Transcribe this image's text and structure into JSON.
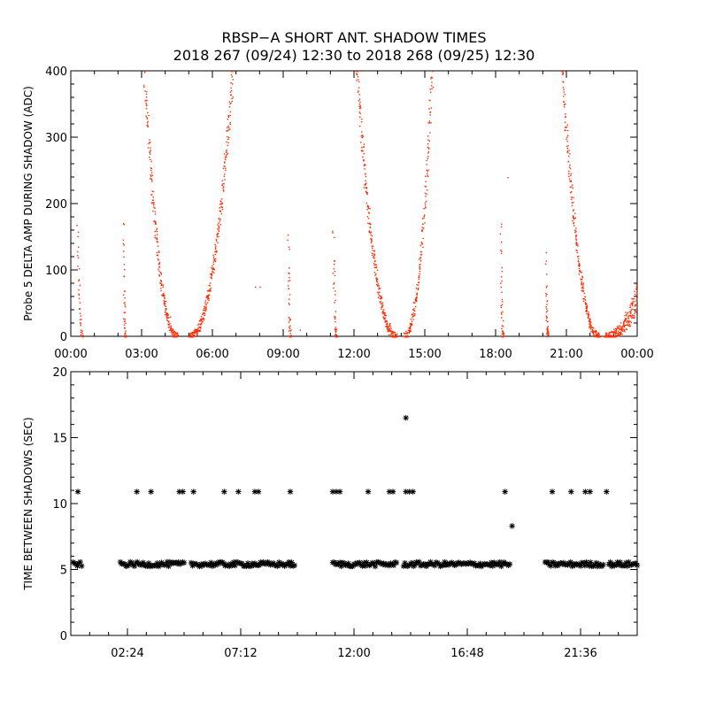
{
  "title": {
    "line1": "RBSP−A SHORT ANT. SHADOW TIMES",
    "line2": "2018 267 (09/24) 12:30 to 2018 268 (09/25) 12:30"
  },
  "colors": {
    "points": "#ff2a00",
    "axes": "#000000",
    "stars": "#000000"
  },
  "chart_data": [
    {
      "type": "scatter",
      "name": "top-panel",
      "ylabel": "Probe 5 DELTA AMP DURING SHADOW (ADC)",
      "xlabel": "",
      "x_unit": "hours",
      "xlim": [
        0,
        24
      ],
      "ylim": [
        0,
        400
      ],
      "x_ticks": [
        {
          "value": 0,
          "label": "00:00"
        },
        {
          "value": 3,
          "label": "03:00"
        },
        {
          "value": 6,
          "label": "06:00"
        },
        {
          "value": 9,
          "label": "09:00"
        },
        {
          "value": 12,
          "label": "12:00"
        },
        {
          "value": 15,
          "label": "15:00"
        },
        {
          "value": 18,
          "label": "18:00"
        },
        {
          "value": 21,
          "label": "21:00"
        },
        {
          "value": 24,
          "label": "00:00"
        }
      ],
      "y_ticks": [
        {
          "value": 0,
          "label": "0"
        },
        {
          "value": 100,
          "label": "100"
        },
        {
          "value": 200,
          "label": "200"
        },
        {
          "value": 300,
          "label": "300"
        },
        {
          "value": 400,
          "label": "400"
        }
      ],
      "segments": [
        {
          "x0": 0.25,
          "x1": 0.5,
          "y0": 160,
          "y1": 0
        },
        {
          "x0": 2.2,
          "x1": 2.3,
          "y0": 170,
          "y1": 0
        },
        {
          "x0": 3.1,
          "x1": 4.5,
          "y0": 400,
          "y1": 0
        },
        {
          "x0": 5.0,
          "x1": 6.85,
          "y0": 0,
          "y1": 400
        },
        {
          "x0": 9.2,
          "x1": 9.3,
          "y0": 140,
          "y1": 0
        },
        {
          "x0": 11.1,
          "x1": 11.25,
          "y0": 150,
          "y1": 0
        },
        {
          "x0": 12.1,
          "x1": 13.8,
          "y0": 400,
          "y1": 0
        },
        {
          "x0": 14.1,
          "x1": 15.3,
          "y0": 0,
          "y1": 400
        },
        {
          "x0": 18.2,
          "x1": 18.3,
          "y0": 160,
          "y1": 0
        },
        {
          "x0": 20.1,
          "x1": 20.2,
          "y0": 110,
          "y1": 0
        },
        {
          "x0": 20.8,
          "x1": 22.4,
          "y0": 400,
          "y1": 0
        },
        {
          "x0": 22.6,
          "x1": 24.0,
          "y0": 0,
          "y1": 60
        }
      ],
      "extra_points": [
        {
          "x": 7.8,
          "y": 75
        },
        {
          "x": 8.0,
          "y": 75
        },
        {
          "x": 18.5,
          "y": 240
        },
        {
          "x": 9.7,
          "y": 10
        },
        {
          "x": 4.2,
          "y": 30
        },
        {
          "x": 13.5,
          "y": 20
        }
      ]
    },
    {
      "type": "scatter",
      "name": "bottom-panel",
      "ylabel": "TIME BETWEEN SHADOWS (SEC)",
      "xlabel": "",
      "x_unit": "hours",
      "xlim": [
        0,
        24
      ],
      "ylim": [
        0,
        20
      ],
      "x_ticks": [
        {
          "value": 2.4,
          "label": "02:24"
        },
        {
          "value": 7.2,
          "label": "07:12"
        },
        {
          "value": 12.0,
          "label": "12:00"
        },
        {
          "value": 16.8,
          "label": "16:48"
        },
        {
          "value": 21.6,
          "label": "21:36"
        }
      ],
      "y_ticks": [
        {
          "value": 0,
          "label": "0"
        },
        {
          "value": 5,
          "label": "5"
        },
        {
          "value": 10,
          "label": "10"
        },
        {
          "value": 15,
          "label": "15"
        },
        {
          "value": 20,
          "label": "20"
        }
      ],
      "bands": [
        {
          "x0": 0.1,
          "x1": 0.5,
          "y": 5.4
        },
        {
          "x0": 2.1,
          "x1": 4.8,
          "y": 5.4
        },
        {
          "x0": 5.1,
          "x1": 9.5,
          "y": 5.4
        },
        {
          "x0": 11.1,
          "x1": 13.8,
          "y": 5.4
        },
        {
          "x0": 14.1,
          "x1": 18.6,
          "y": 5.4
        },
        {
          "x0": 20.1,
          "x1": 22.6,
          "y": 5.4
        },
        {
          "x0": 22.8,
          "x1": 24.0,
          "y": 5.4
        }
      ],
      "points": [
        {
          "x": 0.3,
          "y": 10.9
        },
        {
          "x": 2.8,
          "y": 10.9
        },
        {
          "x": 3.4,
          "y": 10.9
        },
        {
          "x": 4.6,
          "y": 10.9
        },
        {
          "x": 4.75,
          "y": 10.9
        },
        {
          "x": 5.2,
          "y": 10.9
        },
        {
          "x": 6.5,
          "y": 10.9
        },
        {
          "x": 7.1,
          "y": 10.9
        },
        {
          "x": 7.8,
          "y": 10.9
        },
        {
          "x": 7.95,
          "y": 10.9
        },
        {
          "x": 9.3,
          "y": 10.9
        },
        {
          "x": 11.1,
          "y": 10.9
        },
        {
          "x": 11.25,
          "y": 10.9
        },
        {
          "x": 11.4,
          "y": 10.9
        },
        {
          "x": 12.6,
          "y": 10.9
        },
        {
          "x": 13.5,
          "y": 10.9
        },
        {
          "x": 13.65,
          "y": 10.9
        },
        {
          "x": 14.2,
          "y": 10.9
        },
        {
          "x": 14.35,
          "y": 10.9
        },
        {
          "x": 14.5,
          "y": 10.9
        },
        {
          "x": 14.2,
          "y": 16.5
        },
        {
          "x": 18.4,
          "y": 10.9
        },
        {
          "x": 18.7,
          "y": 8.3
        },
        {
          "x": 20.4,
          "y": 10.9
        },
        {
          "x": 21.2,
          "y": 10.9
        },
        {
          "x": 21.8,
          "y": 10.9
        },
        {
          "x": 22.0,
          "y": 10.9
        },
        {
          "x": 22.7,
          "y": 10.9
        }
      ]
    }
  ]
}
